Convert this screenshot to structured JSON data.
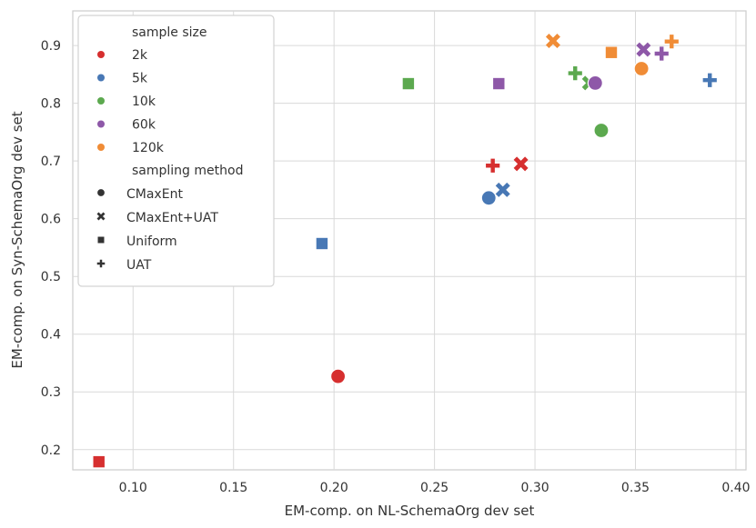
{
  "chart_data": {
    "type": "scatter",
    "title": "",
    "xlabel": "EM-comp. on NL-SchemaOrg dev set",
    "ylabel": "EM-comp. on Syn-SchemaOrg dev set",
    "xlim": [
      0.07,
      0.405
    ],
    "ylim": [
      0.165,
      0.96
    ],
    "xticks": [
      "0.10",
      "0.15",
      "0.20",
      "0.25",
      "0.30",
      "0.35",
      "0.40"
    ],
    "yticks": [
      "0.2",
      "0.3",
      "0.4",
      "0.5",
      "0.6",
      "0.7",
      "0.8",
      "0.9"
    ],
    "grid": true,
    "legend_position": "top-left",
    "legend": {
      "hue_title": "sample size",
      "style_title": "sampling method",
      "hue_entries": [
        {
          "label": "2k",
          "color": "#d62f2f"
        },
        {
          "label": "5k",
          "color": "#4878b5"
        },
        {
          "label": "10k",
          "color": "#5ca94f"
        },
        {
          "label": "60k",
          "color": "#8e58a8"
        },
        {
          "label": "120k",
          "color": "#f08c36"
        }
      ],
      "style_entries": [
        {
          "label": "CMaxEnt",
          "marker": "circle"
        },
        {
          "label": "CMaxEnt+UAT",
          "marker": "x"
        },
        {
          "label": "Uniform",
          "marker": "square"
        },
        {
          "label": "UAT",
          "marker": "plus"
        }
      ]
    },
    "series": [
      {
        "name": "2k",
        "color": "#d62f2f",
        "points": [
          {
            "method": "CMaxEnt",
            "x": 0.202,
            "y": 0.327
          },
          {
            "method": "CMaxEnt+UAT",
            "x": 0.293,
            "y": 0.695
          },
          {
            "method": "Uniform",
            "x": 0.083,
            "y": 0.179
          },
          {
            "method": "UAT",
            "x": 0.279,
            "y": 0.692
          }
        ]
      },
      {
        "name": "5k",
        "color": "#4878b5",
        "points": [
          {
            "method": "CMaxEnt",
            "x": 0.277,
            "y": 0.636
          },
          {
            "method": "CMaxEnt+UAT",
            "x": 0.284,
            "y": 0.65
          },
          {
            "method": "Uniform",
            "x": 0.194,
            "y": 0.557
          },
          {
            "method": "UAT",
            "x": 0.387,
            "y": 0.84
          }
        ]
      },
      {
        "name": "10k",
        "color": "#5ca94f",
        "points": [
          {
            "method": "CMaxEnt",
            "x": 0.333,
            "y": 0.753
          },
          {
            "method": "CMaxEnt+UAT",
            "x": 0.327,
            "y": 0.835
          },
          {
            "method": "Uniform",
            "x": 0.237,
            "y": 0.834
          },
          {
            "method": "UAT",
            "x": 0.32,
            "y": 0.852
          }
        ]
      },
      {
        "name": "60k",
        "color": "#8e58a8",
        "points": [
          {
            "method": "CMaxEnt",
            "x": 0.33,
            "y": 0.835
          },
          {
            "method": "CMaxEnt+UAT",
            "x": 0.354,
            "y": 0.893
          },
          {
            "method": "Uniform",
            "x": 0.282,
            "y": 0.834
          },
          {
            "method": "UAT",
            "x": 0.363,
            "y": 0.886
          }
        ]
      },
      {
        "name": "120k",
        "color": "#f08c36",
        "points": [
          {
            "method": "CMaxEnt",
            "x": 0.353,
            "y": 0.86
          },
          {
            "method": "CMaxEnt+UAT",
            "x": 0.309,
            "y": 0.908
          },
          {
            "method": "Uniform",
            "x": 0.338,
            "y": 0.888
          },
          {
            "method": "UAT",
            "x": 0.368,
            "y": 0.907
          }
        ]
      }
    ]
  }
}
